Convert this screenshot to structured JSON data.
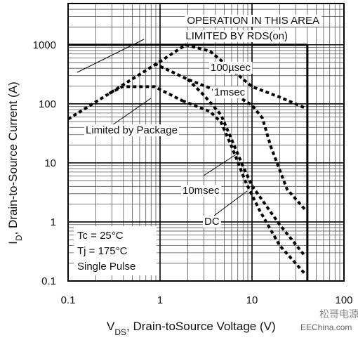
{
  "chart_data": {
    "type": "line",
    "x_label": [
      "V",
      "DS",
      ", Drain-toSource Voltage (V)"
    ],
    "y_label": [
      "I",
      "D",
      ", Drain-to-Source Current (A)"
    ],
    "xscale": "log",
    "yscale": "log",
    "xlim": [
      0.1,
      100
    ],
    "ylim": [
      0.1,
      5000
    ],
    "xticks": [
      0.1,
      1,
      10,
      100
    ],
    "yticks": [
      0.1,
      1,
      10,
      100,
      1000
    ],
    "xminorticks": [
      0.2,
      0.3,
      0.4,
      0.5,
      0.6,
      0.7,
      0.8,
      0.9,
      2,
      3,
      4,
      5,
      6,
      7,
      8,
      9,
      20,
      30,
      40,
      50,
      60,
      70,
      80,
      90
    ],
    "yminorticks": [
      0.2,
      0.3,
      0.4,
      0.5,
      0.6,
      0.7,
      0.8,
      0.9,
      2,
      3,
      4,
      5,
      6,
      7,
      8,
      9,
      20,
      30,
      40,
      50,
      60,
      70,
      80,
      90,
      200,
      300,
      400,
      500,
      600,
      700,
      800,
      900,
      2000,
      3000,
      4000
    ],
    "grid": true,
    "limit_box": {
      "x": 40,
      "y": 1000
    },
    "annotations": {
      "rds": [
        "OPERATION IN THIS AREA",
        "LIMITED BY RDS(on)"
      ],
      "conditions": [
        "Tc = 25°C",
        "Tj = 175°C",
        "Single Pulse"
      ]
    },
    "series": [
      {
        "name": "100µsec",
        "color": "#000000",
        "x": [
          0.1,
          0.3,
          1,
          1.9,
          3.5,
          10,
          20,
          38
        ],
        "values": [
          55,
          160,
          520,
          1000,
          780,
          195,
          130,
          85
        ]
      },
      {
        "name": "1msec",
        "color": "#000000",
        "x": [
          0.87,
          2,
          4,
          7.2,
          10,
          13,
          16,
          24,
          38
        ],
        "values": [
          480,
          260,
          170,
          130,
          95,
          57,
          19,
          3.6,
          1.6
        ]
      },
      {
        "name": "10msec",
        "color": "#000000",
        "x": [
          2,
          3,
          4.6,
          6,
          7.8,
          10,
          20,
          38
        ],
        "values": [
          260,
          140,
          65,
          25,
          9.5,
          4.1,
          0.9,
          0.26
        ]
      },
      {
        "name": "Limited by Package",
        "color": "#000000",
        "x": [
          0.28,
          0.39,
          0.87,
          1.75
        ],
        "values": [
          150,
          195,
          195,
          113
        ]
      },
      {
        "name": "DC",
        "color": "#000000",
        "x": [
          1.75,
          3.5,
          4.6,
          6,
          8.5,
          12,
          20,
          38
        ],
        "values": [
          113,
          74,
          49,
          19,
          4.8,
          1.6,
          0.4,
          0.13
        ]
      }
    ],
    "watermark": [
      "松哥电源",
      "EEChina.com"
    ]
  }
}
